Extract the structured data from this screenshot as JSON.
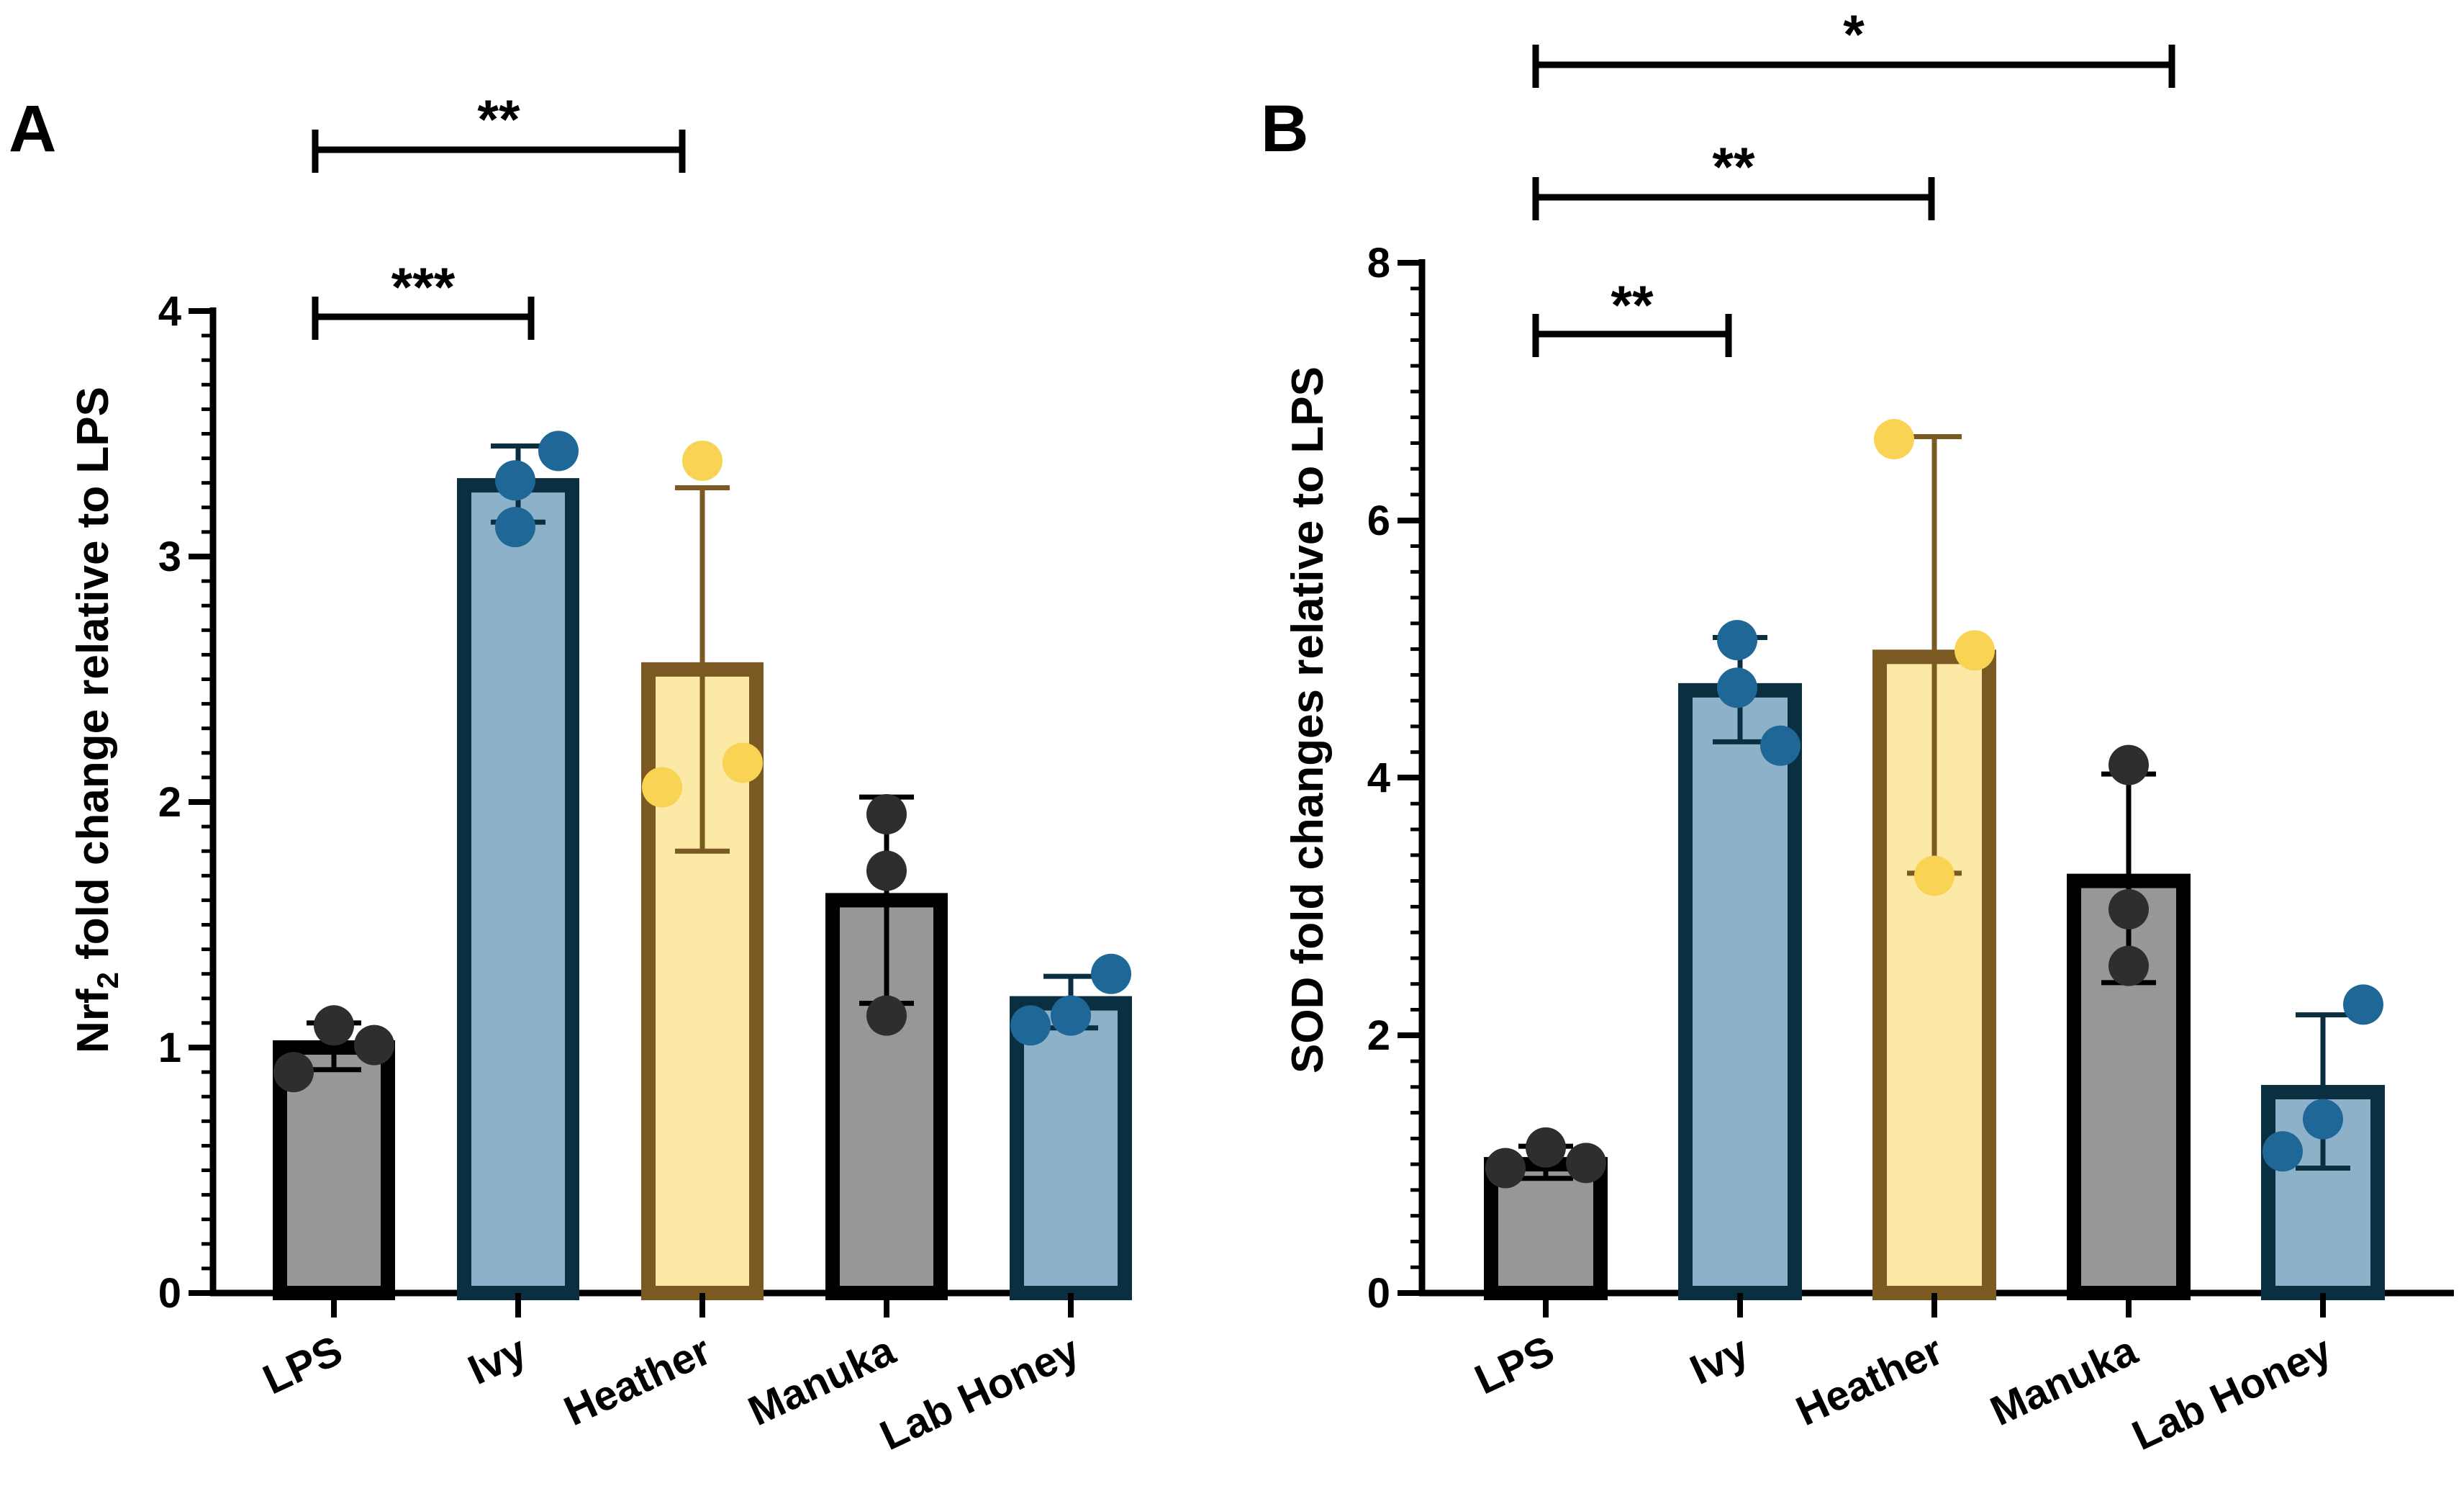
{
  "chart_data": [
    {
      "panel": "A",
      "type": "bar",
      "ylabel_main": "Nrf",
      "ylabel_sub": "2",
      "ylabel_rest": " fold change relative to LPS",
      "ylim": [
        0,
        4
      ],
      "yticks": [
        "0",
        "1",
        "2",
        "3",
        "4"
      ],
      "categories": [
        "LPS",
        "Ivy",
        "Heather",
        "Manuka",
        "Lab Honey"
      ],
      "values": [
        1.0,
        3.29,
        2.54,
        1.6,
        1.18
      ],
      "error_low": [
        0.91,
        3.14,
        1.8,
        1.18,
        1.08
      ],
      "error_high": [
        1.1,
        3.45,
        3.28,
        2.02,
        1.29
      ],
      "points": [
        [
          0.9,
          1.09,
          1.01
        ],
        [
          3.31,
          3.12,
          3.43
        ],
        [
          2.06,
          2.16,
          3.39
        ],
        [
          1.95,
          1.72,
          1.13
        ],
        [
          1.09,
          1.3,
          1.13
        ]
      ],
      "comparisons": [
        {
          "from": 0,
          "to": 1,
          "label": "***"
        },
        {
          "from": 0,
          "to": 2,
          "label": "**"
        }
      ]
    },
    {
      "panel": "B",
      "type": "bar",
      "ylabel_main": "SOD fold changes relative to LPS",
      "ylabel_sub": "",
      "ylabel_rest": "",
      "ylim": [
        0,
        8
      ],
      "yticks": [
        "0",
        "2",
        "4",
        "6",
        "8"
      ],
      "categories": [
        "LPS",
        "Ivy",
        "Heather",
        "Manuka",
        "Lab Honey"
      ],
      "values": [
        1.0,
        4.68,
        4.94,
        3.2,
        1.56
      ],
      "error_low": [
        0.89,
        4.28,
        3.26,
        2.41,
        0.97
      ],
      "error_high": [
        1.14,
        5.09,
        6.65,
        4.03,
        2.16
      ],
      "points": [
        [
          0.97,
          1.13,
          1.01
        ],
        [
          5.07,
          4.7,
          4.25
        ],
        [
          6.63,
          4.99,
          3.24
        ],
        [
          4.1,
          2.98,
          2.54
        ],
        [
          1.1,
          2.24,
          1.35
        ]
      ],
      "comparisons": [
        {
          "from": 0,
          "to": 1,
          "label": "**"
        },
        {
          "from": 0,
          "to": 2,
          "label": "**"
        },
        {
          "from": 0,
          "to": 3,
          "label": "*"
        }
      ]
    }
  ],
  "colors": {
    "gray_fill": "#979797",
    "gray_edge": "#000000",
    "gray_point": "#2e2e2e",
    "blue_fill": "#8eb1ca",
    "blue_edge": "#0a2f40",
    "blue_point": "#1f6796",
    "yellow_fill": "#fce9a6",
    "yellow_edge": "#7a5a22",
    "yellow_point": "#f8d354"
  }
}
